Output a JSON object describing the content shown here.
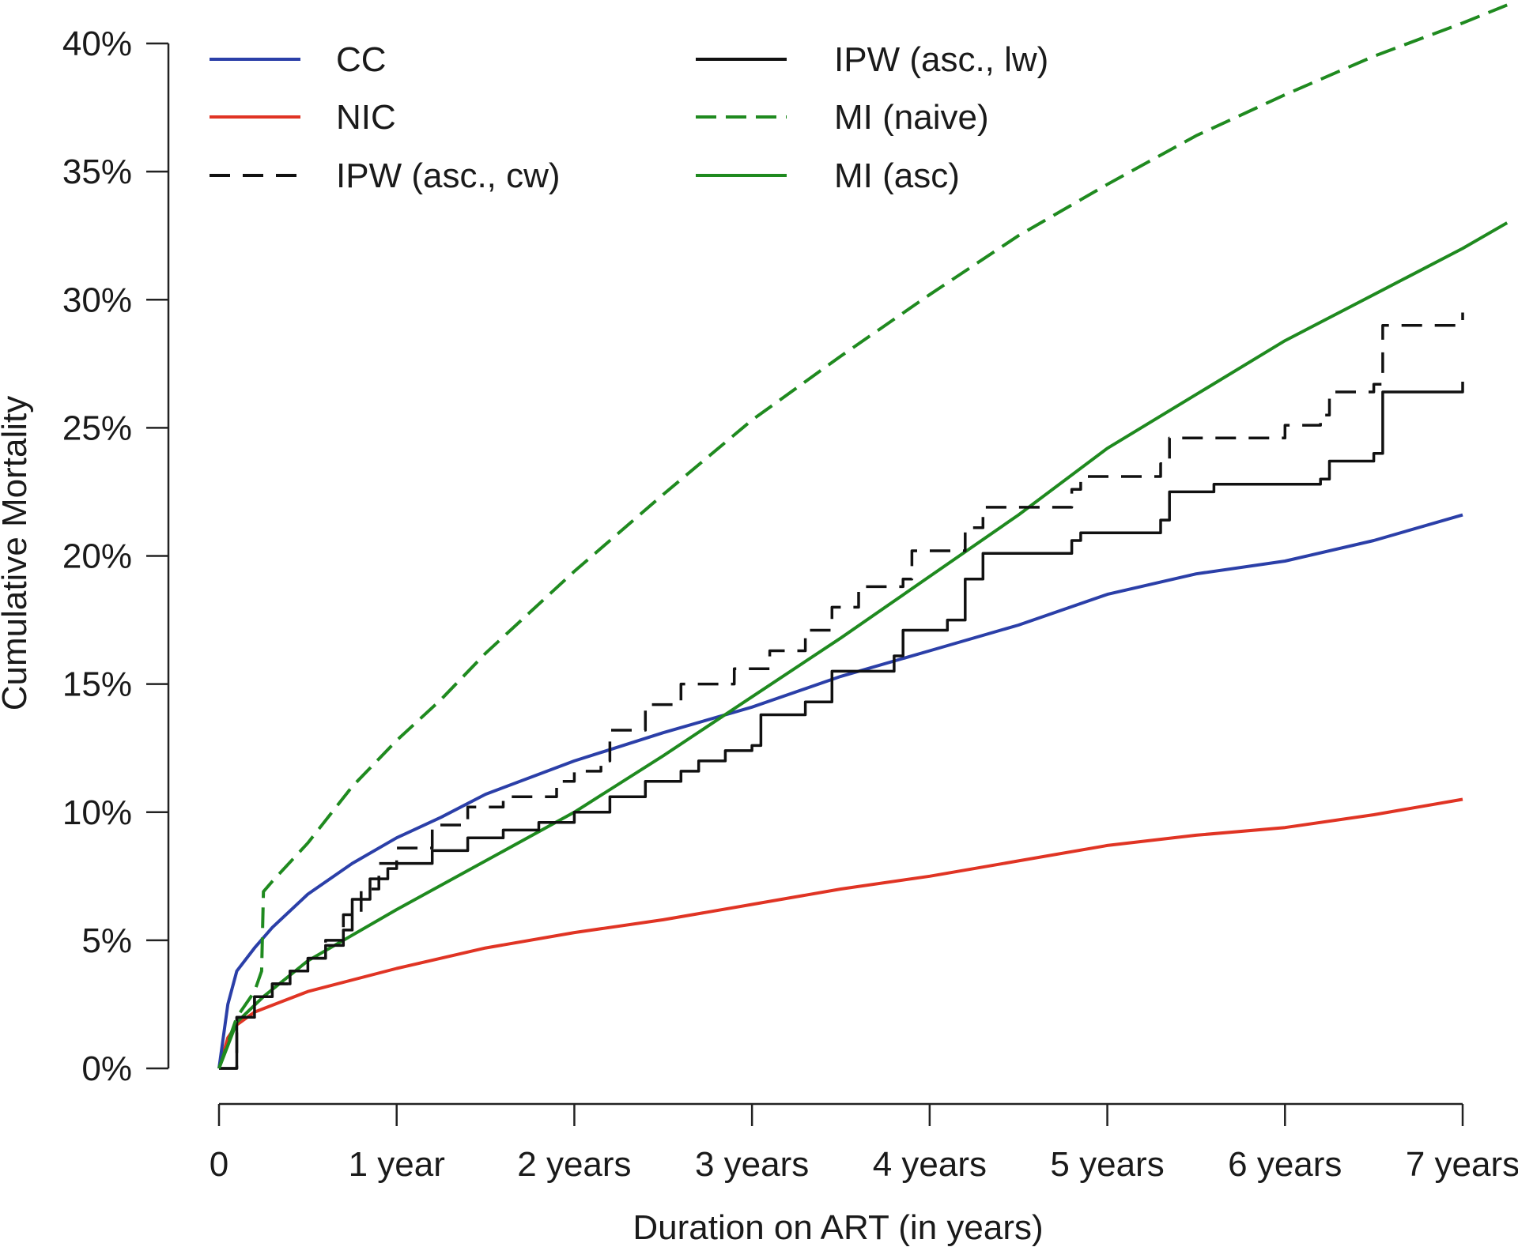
{
  "chart_data": {
    "type": "line",
    "title": "",
    "xlabel": "Duration on ART (in years)",
    "ylabel": "Cumulative Mortality",
    "xlim": [
      0,
      7
    ],
    "ylim": [
      0,
      40
    ],
    "x_ticks": [
      {
        "value": 0,
        "label": "0"
      },
      {
        "value": 1,
        "label": "1 year"
      },
      {
        "value": 2,
        "label": "2 years"
      },
      {
        "value": 3,
        "label": "3 years"
      },
      {
        "value": 4,
        "label": "4 years"
      },
      {
        "value": 5,
        "label": "5 years"
      },
      {
        "value": 6,
        "label": "6 years"
      },
      {
        "value": 7,
        "label": "7 years"
      }
    ],
    "y_ticks": [
      {
        "value": 0,
        "label": "0%"
      },
      {
        "value": 5,
        "label": "5%"
      },
      {
        "value": 10,
        "label": "10%"
      },
      {
        "value": 15,
        "label": "15%"
      },
      {
        "value": 20,
        "label": "20%"
      },
      {
        "value": 25,
        "label": "25%"
      },
      {
        "value": 30,
        "label": "30%"
      },
      {
        "value": 35,
        "label": "35%"
      },
      {
        "value": 40,
        "label": "40%"
      }
    ],
    "grid": false,
    "legend_position": "top-left, two columns",
    "series": [
      {
        "name": "CC",
        "color": "#2b3fa8",
        "style": "solid",
        "step": false,
        "points": [
          [
            0,
            0
          ],
          [
            0.05,
            2.5
          ],
          [
            0.1,
            3.8
          ],
          [
            0.2,
            4.7
          ],
          [
            0.3,
            5.5
          ],
          [
            0.5,
            6.8
          ],
          [
            0.75,
            8.0
          ],
          [
            1.0,
            9.0
          ],
          [
            1.25,
            9.8
          ],
          [
            1.5,
            10.7
          ],
          [
            2.0,
            12.0
          ],
          [
            2.5,
            13.1
          ],
          [
            3.0,
            14.1
          ],
          [
            3.5,
            15.3
          ],
          [
            4.0,
            16.3
          ],
          [
            4.5,
            17.3
          ],
          [
            5.0,
            18.5
          ],
          [
            5.5,
            19.3
          ],
          [
            6.0,
            19.8
          ],
          [
            6.5,
            20.6
          ],
          [
            7.0,
            21.6
          ]
        ]
      },
      {
        "name": "NIC",
        "color": "#e03424",
        "style": "solid",
        "step": false,
        "points": [
          [
            0,
            0
          ],
          [
            0.05,
            1.2
          ],
          [
            0.1,
            1.7
          ],
          [
            0.2,
            2.2
          ],
          [
            0.5,
            3.0
          ],
          [
            1.0,
            3.9
          ],
          [
            1.5,
            4.7
          ],
          [
            2.0,
            5.3
          ],
          [
            2.5,
            5.8
          ],
          [
            3.0,
            6.4
          ],
          [
            3.5,
            7.0
          ],
          [
            4.0,
            7.5
          ],
          [
            4.5,
            8.1
          ],
          [
            5.0,
            8.7
          ],
          [
            5.5,
            9.1
          ],
          [
            6.0,
            9.4
          ],
          [
            6.5,
            9.9
          ],
          [
            7.0,
            10.5
          ]
        ]
      },
      {
        "name": "IPW (asc., cw)",
        "color": "#111111",
        "style": "dashed",
        "step": true,
        "points": [
          [
            0,
            0
          ],
          [
            0.1,
            2.0
          ],
          [
            0.2,
            2.8
          ],
          [
            0.3,
            3.3
          ],
          [
            0.4,
            3.8
          ],
          [
            0.5,
            4.3
          ],
          [
            0.6,
            5.0
          ],
          [
            0.7,
            6.0
          ],
          [
            0.8,
            7.0
          ],
          [
            0.9,
            8.0
          ],
          [
            1.0,
            8.6
          ],
          [
            1.2,
            9.5
          ],
          [
            1.4,
            10.2
          ],
          [
            1.6,
            10.6
          ],
          [
            1.9,
            11.2
          ],
          [
            2.0,
            11.6
          ],
          [
            2.15,
            12.0
          ],
          [
            2.2,
            13.2
          ],
          [
            2.4,
            14.2
          ],
          [
            2.6,
            15.0
          ],
          [
            2.9,
            15.6
          ],
          [
            3.1,
            16.3
          ],
          [
            3.3,
            17.1
          ],
          [
            3.45,
            18.0
          ],
          [
            3.6,
            18.8
          ],
          [
            3.85,
            19.1
          ],
          [
            3.9,
            20.2
          ],
          [
            4.2,
            21.1
          ],
          [
            4.3,
            21.9
          ],
          [
            4.8,
            22.6
          ],
          [
            4.85,
            23.1
          ],
          [
            5.3,
            23.6
          ],
          [
            5.35,
            24.6
          ],
          [
            6.0,
            25.1
          ],
          [
            6.2,
            25.5
          ],
          [
            6.25,
            26.4
          ],
          [
            6.5,
            26.7
          ],
          [
            6.55,
            29.0
          ],
          [
            7.0,
            29.5
          ]
        ]
      },
      {
        "name": "IPW (asc., lw)",
        "color": "#111111",
        "style": "solid",
        "step": true,
        "points": [
          [
            0,
            0
          ],
          [
            0.1,
            2.0
          ],
          [
            0.2,
            2.8
          ],
          [
            0.3,
            3.3
          ],
          [
            0.4,
            3.8
          ],
          [
            0.5,
            4.3
          ],
          [
            0.6,
            4.8
          ],
          [
            0.7,
            5.4
          ],
          [
            0.75,
            6.6
          ],
          [
            0.85,
            7.4
          ],
          [
            0.95,
            7.8
          ],
          [
            1.0,
            8.0
          ],
          [
            1.2,
            8.5
          ],
          [
            1.4,
            9.0
          ],
          [
            1.6,
            9.3
          ],
          [
            1.8,
            9.6
          ],
          [
            2.0,
            10.0
          ],
          [
            2.2,
            10.6
          ],
          [
            2.4,
            11.2
          ],
          [
            2.6,
            11.6
          ],
          [
            2.7,
            12.0
          ],
          [
            2.85,
            12.4
          ],
          [
            3.0,
            12.6
          ],
          [
            3.05,
            13.8
          ],
          [
            3.3,
            14.3
          ],
          [
            3.45,
            15.5
          ],
          [
            3.8,
            16.1
          ],
          [
            3.85,
            17.1
          ],
          [
            4.1,
            17.5
          ],
          [
            4.2,
            19.1
          ],
          [
            4.3,
            20.1
          ],
          [
            4.8,
            20.6
          ],
          [
            4.85,
            20.9
          ],
          [
            5.3,
            21.4
          ],
          [
            5.35,
            22.5
          ],
          [
            5.6,
            22.8
          ],
          [
            6.2,
            23.0
          ],
          [
            6.25,
            23.7
          ],
          [
            6.5,
            24.0
          ],
          [
            6.55,
            26.4
          ],
          [
            7.0,
            26.8
          ]
        ]
      },
      {
        "name": "MI (naive)",
        "color": "#1f8a1f",
        "style": "dashed",
        "step": false,
        "points": [
          [
            0,
            0
          ],
          [
            0.1,
            2.0
          ],
          [
            0.2,
            3.0
          ],
          [
            0.24,
            3.8
          ],
          [
            0.25,
            6.9
          ],
          [
            0.3,
            7.3
          ],
          [
            0.5,
            8.8
          ],
          [
            0.75,
            11.0
          ],
          [
            1.0,
            12.8
          ],
          [
            1.25,
            14.4
          ],
          [
            1.5,
            16.2
          ],
          [
            2.0,
            19.4
          ],
          [
            2.5,
            22.4
          ],
          [
            3.0,
            25.3
          ],
          [
            3.5,
            27.8
          ],
          [
            4.0,
            30.2
          ],
          [
            4.5,
            32.5
          ],
          [
            5.0,
            34.5
          ],
          [
            5.5,
            36.4
          ],
          [
            6.0,
            38.0
          ],
          [
            6.5,
            39.5
          ],
          [
            7.0,
            40.8
          ],
          [
            7.25,
            41.5
          ]
        ]
      },
      {
        "name": "MI (asc)",
        "color": "#1f8a1f",
        "style": "solid",
        "step": false,
        "points": [
          [
            0,
            0
          ],
          [
            0.1,
            1.8
          ],
          [
            0.25,
            2.8
          ],
          [
            0.5,
            4.2
          ],
          [
            1.0,
            6.2
          ],
          [
            1.5,
            8.1
          ],
          [
            2.0,
            10.0
          ],
          [
            2.5,
            12.2
          ],
          [
            3.0,
            14.5
          ],
          [
            3.5,
            16.8
          ],
          [
            4.0,
            19.2
          ],
          [
            4.5,
            21.6
          ],
          [
            5.0,
            24.2
          ],
          [
            5.5,
            26.3
          ],
          [
            6.0,
            28.4
          ],
          [
            6.5,
            30.2
          ],
          [
            7.0,
            32.0
          ],
          [
            7.25,
            33.0
          ]
        ]
      }
    ],
    "legend": {
      "col1": [
        "CC",
        "NIC",
        "IPW (asc., cw)"
      ],
      "col2": [
        "IPW (asc., lw)",
        "MI (naive)",
        "MI (asc)"
      ]
    }
  }
}
